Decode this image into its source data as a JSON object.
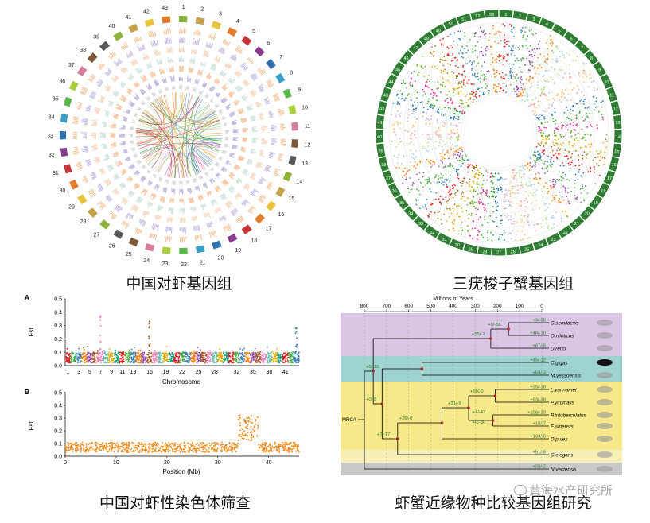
{
  "captions": {
    "top_left": "中国对虾基因组",
    "top_right": "三疣梭子蟹基因组",
    "bottom_left": "中国对虾性染色体筛查",
    "bottom_right": "虾蟹近缘物种比较基因组研究"
  },
  "watermark": "黄海水产研究所",
  "circos_left": {
    "chromosome_labels": [
      "1",
      "2",
      "3",
      "4",
      "5",
      "6",
      "7",
      "8",
      "9",
      "10",
      "11",
      "12",
      "13",
      "14",
      "15",
      "16",
      "17",
      "18",
      "19",
      "20",
      "21",
      "22",
      "23",
      "24",
      "25",
      "26",
      "27",
      "28",
      "29",
      "30",
      "31",
      "32",
      "33",
      "34",
      "35",
      "36",
      "37",
      "38",
      "39",
      "40",
      "41",
      "42",
      "43"
    ]
  },
  "circos_right": {
    "chromosome_labels": [
      "1",
      "2",
      "3",
      "4",
      "5",
      "6",
      "7",
      "8",
      "9",
      "10",
      "11",
      "12",
      "13",
      "14",
      "15",
      "16",
      "17",
      "18",
      "19",
      "20",
      "21",
      "22",
      "23",
      "24",
      "25",
      "26",
      "27",
      "28",
      "29",
      "30",
      "31",
      "32",
      "33",
      "34",
      "35",
      "36",
      "37",
      "38",
      "39",
      "40",
      "41",
      "42",
      "43",
      "44",
      "45",
      "46",
      "47",
      "48",
      "49",
      "50",
      "51",
      "52",
      "53"
    ]
  },
  "chart_data": [
    {
      "type": "scatter",
      "panel_label": "A",
      "ylabel": "Fst",
      "xlabel": "Chromosome",
      "yticks": [
        "0.0",
        "0.1",
        "0.2",
        "0.3",
        "0.4",
        "0.5"
      ],
      "ylim": [
        0,
        0.5
      ],
      "xticks": [
        "1",
        "3",
        "5",
        "7",
        "9",
        "11",
        "13",
        "16",
        "19",
        "22",
        "25",
        "28",
        "32",
        "35",
        "38",
        "41"
      ],
      "peaks": [
        {
          "chromosome": "7",
          "fst": 0.37
        },
        {
          "chromosome": "16",
          "fst": 0.33
        },
        {
          "chromosome": "43",
          "fst": 0.28
        }
      ]
    },
    {
      "type": "scatter",
      "panel_label": "B",
      "ylabel": "Fst",
      "xlabel": "Position (Mb)",
      "yticks": [
        "0.0",
        "0.1",
        "0.2",
        "0.3",
        "0.4",
        "0.5"
      ],
      "ylim": [
        0,
        0.5
      ],
      "xticks": [
        "0",
        "10",
        "20",
        "30",
        "40"
      ],
      "xlim": [
        0,
        46
      ],
      "color": "#f28b1a",
      "baseline_fst": 0.08,
      "peak_region_mb": [
        34,
        38
      ],
      "peak_fst": 0.33
    },
    {
      "type": "tree",
      "title": "Millions of Years",
      "xticks": [
        "800",
        "700",
        "600",
        "500",
        "400",
        "300",
        "200",
        "100",
        "0"
      ],
      "root_label": "MRCA",
      "taxa": [
        {
          "name": "C.semilaevis",
          "annotation": "+3/-58"
        },
        {
          "name": "O.niloticus",
          "annotation": "+48/-10"
        },
        {
          "name": "D.rerio",
          "annotation": "+87/-5"
        },
        {
          "name": "C.gigas",
          "annotation": "+45/-12"
        },
        {
          "name": "M.yessoensis",
          "annotation": "+59/-3"
        },
        {
          "name": "L.vannamei",
          "annotation": "+35/-18"
        },
        {
          "name": "P.virginalis",
          "annotation": "+93/-38"
        },
        {
          "name": "P.trituberculatus",
          "annotation": "+108/-23"
        },
        {
          "name": "E.sinensis",
          "annotation": "+18/-7"
        },
        {
          "name": "D.pulex",
          "annotation": "+133/-0"
        },
        {
          "name": "C.elegans",
          "annotation": "+51/-5"
        },
        {
          "name": "N.vectensis",
          "annotation": "+28/-2"
        }
      ],
      "internal_annotations": [
        "+9/-56",
        "+55/-2",
        "+0/-10",
        "+0/-8",
        "+58/-0",
        "+31/-9",
        "+26/-0",
        "+1/-47",
        "+6/-30",
        "+7/-17"
      ],
      "group_colors": [
        "#d9c6e4",
        "#9fd3cf",
        "#f5e98a",
        "#c8c8c8"
      ]
    }
  ]
}
